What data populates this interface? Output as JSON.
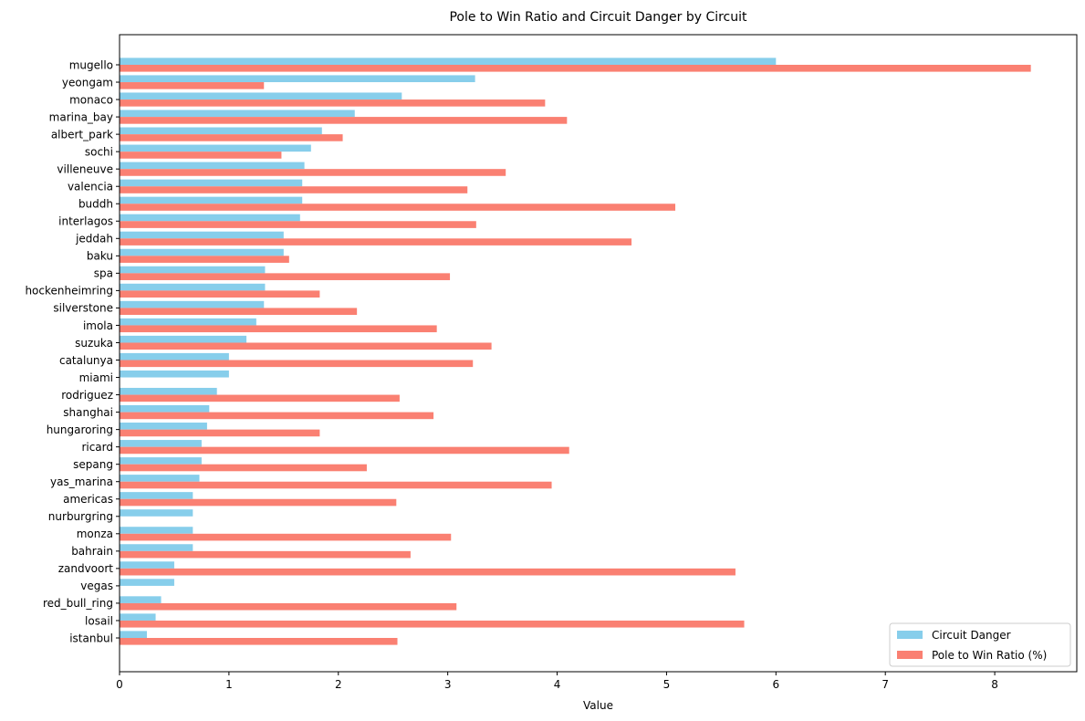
{
  "chart_data": {
    "type": "bar",
    "orientation": "horizontal",
    "title": "Pole to Win Ratio and Circuit Danger by Circuit",
    "xlabel": "Value",
    "ylabel": "",
    "xlim": [
      0,
      8.75
    ],
    "xticks": [
      0,
      1,
      2,
      3,
      4,
      5,
      6,
      7,
      8
    ],
    "grid": false,
    "legend_position": "bottom-right",
    "categories": [
      "mugello",
      "yeongam",
      "monaco",
      "marina_bay",
      "albert_park",
      "sochi",
      "villeneuve",
      "valencia",
      "buddh",
      "interlagos",
      "jeddah",
      "baku",
      "spa",
      "hockenheimring",
      "silverstone",
      "imola",
      "suzuka",
      "catalunya",
      "miami",
      "rodriguez",
      "shanghai",
      "hungaroring",
      "ricard",
      "sepang",
      "yas_marina",
      "americas",
      "nurburgring",
      "monza",
      "bahrain",
      "zandvoort",
      "vegas",
      "red_bull_ring",
      "losail",
      "istanbul"
    ],
    "series": [
      {
        "name": "Circuit Danger",
        "color": "#87ceeb",
        "values": [
          6.0,
          3.25,
          2.58,
          2.15,
          1.85,
          1.75,
          1.69,
          1.67,
          1.67,
          1.65,
          1.5,
          1.5,
          1.33,
          1.33,
          1.32,
          1.25,
          1.16,
          1.0,
          1.0,
          0.89,
          0.82,
          0.8,
          0.75,
          0.75,
          0.73,
          0.67,
          0.67,
          0.67,
          0.67,
          0.5,
          0.5,
          0.38,
          0.33,
          0.25
        ]
      },
      {
        "name": "Pole to Win Ratio (%)",
        "color": "#fa8072",
        "values": [
          8.33,
          1.32,
          3.89,
          4.09,
          2.04,
          1.48,
          3.53,
          3.18,
          5.08,
          3.26,
          4.68,
          1.55,
          3.02,
          1.83,
          2.17,
          2.9,
          3.4,
          3.23,
          0,
          2.56,
          2.87,
          1.83,
          4.11,
          2.26,
          3.95,
          2.53,
          0,
          3.03,
          2.66,
          5.63,
          0,
          3.08,
          5.71,
          2.54
        ]
      }
    ]
  }
}
